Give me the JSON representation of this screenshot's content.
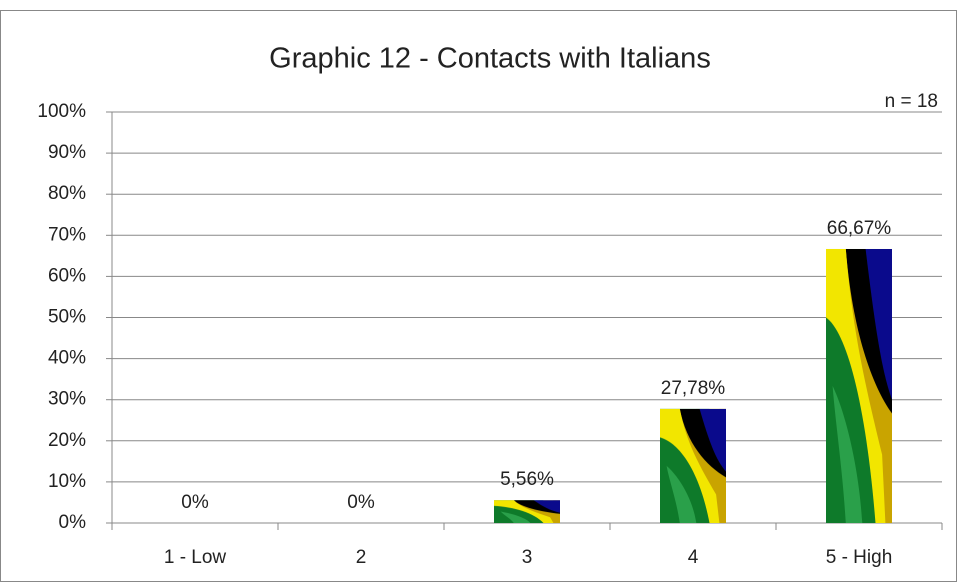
{
  "chart_data": {
    "type": "bar",
    "title": "Graphic 12 - Contacts with Italians",
    "annotation": "n = 18",
    "categories": [
      "1 - Low",
      "2",
      "3",
      "4",
      "5 - High"
    ],
    "values": [
      0,
      0,
      5.56,
      27.78,
      66.67
    ],
    "value_labels": [
      "0%",
      "0%",
      "5,56%",
      "27,78%",
      "66,67%"
    ],
    "ylim": [
      0,
      100
    ],
    "yticks": [
      {
        "value": 0,
        "label": "0%"
      },
      {
        "value": 10,
        "label": "10%"
      },
      {
        "value": 20,
        "label": "20%"
      },
      {
        "value": 30,
        "label": "30%"
      },
      {
        "value": 40,
        "label": "40%"
      },
      {
        "value": 50,
        "label": "50%"
      },
      {
        "value": 60,
        "label": "60%"
      },
      {
        "value": 70,
        "label": "70%"
      },
      {
        "value": 80,
        "label": "80%"
      },
      {
        "value": 90,
        "label": "90%"
      },
      {
        "value": 100,
        "label": "100%"
      }
    ],
    "grid": true
  }
}
